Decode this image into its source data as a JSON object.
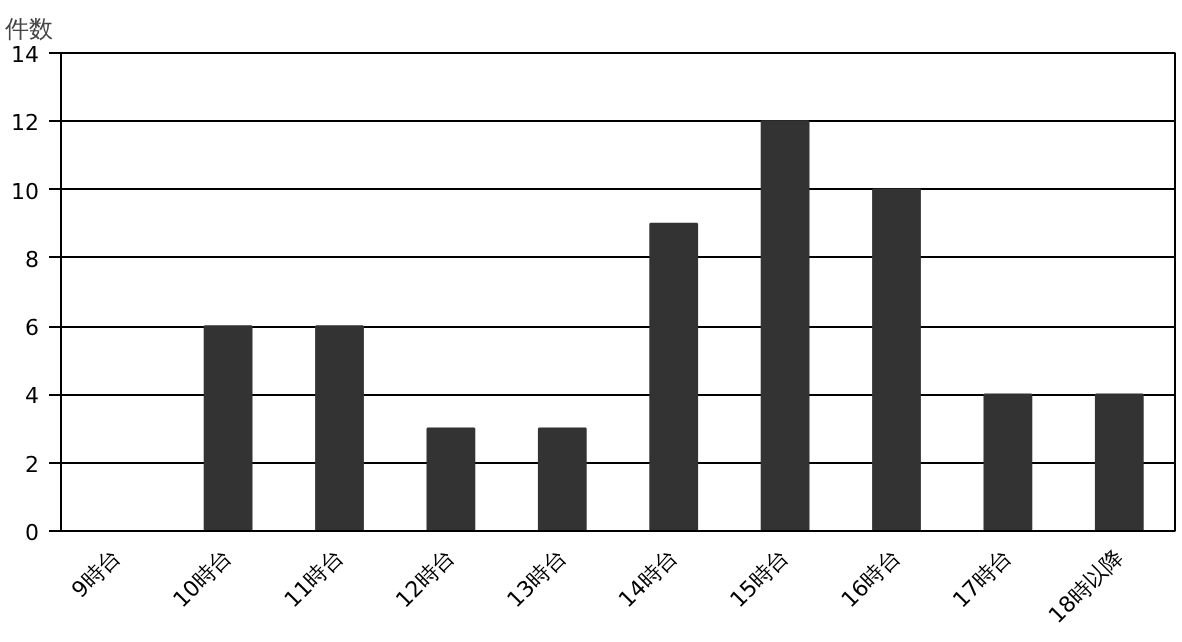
{
  "chart_data": {
    "type": "bar",
    "ylabel": "件数",
    "categories": [
      "9時台",
      "10時台",
      "11時台",
      "12時台",
      "13時台",
      "14時台",
      "15時台",
      "16時台",
      "17時台",
      "18時以降"
    ],
    "values": [
      0,
      6,
      6,
      3,
      3,
      9,
      12,
      10,
      4,
      4
    ],
    "color": "#333333",
    "ylim": [
      0,
      14
    ],
    "yticks": [
      0,
      2,
      4,
      6,
      8,
      10,
      12,
      14
    ],
    "grid": "y"
  }
}
